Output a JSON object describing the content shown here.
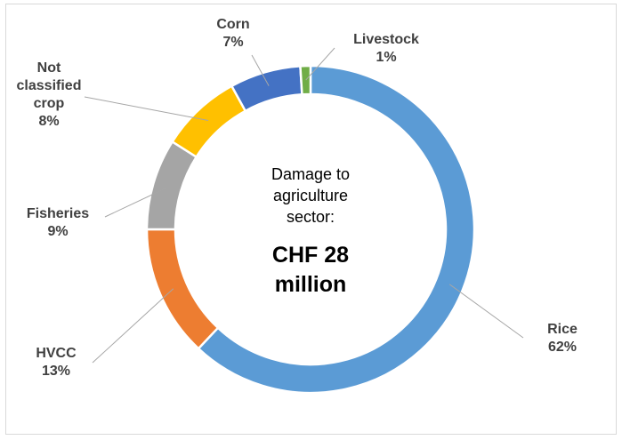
{
  "chart_data": {
    "type": "pie",
    "donut": true,
    "center_text": {
      "lines": [
        "Damage to",
        "agriculture",
        "sector:"
      ],
      "emphasis": [
        "CHF 28",
        "million"
      ]
    },
    "slices": [
      {
        "name": "Rice",
        "percent_label": "62%",
        "value": 62,
        "color": "#5b9bd5"
      },
      {
        "name": "HVCC",
        "percent_label": "13%",
        "value": 13,
        "color": "#ed7d31"
      },
      {
        "name": "Fisheries",
        "percent_label": "9%",
        "value": 9,
        "color": "#a5a5a5"
      },
      {
        "name": "Not classified crop",
        "name_lines": [
          "Not",
          "classified",
          "crop"
        ],
        "percent_label": "8%",
        "value": 8,
        "color": "#ffc000"
      },
      {
        "name": "Corn",
        "percent_label": "7%",
        "value": 7,
        "color": "#4472c4"
      },
      {
        "name": "Livestock",
        "percent_label": "1%",
        "value": 1,
        "color": "#70ad47"
      }
    ],
    "legend": "none",
    "label_position": "outside-with-leader-lines"
  }
}
